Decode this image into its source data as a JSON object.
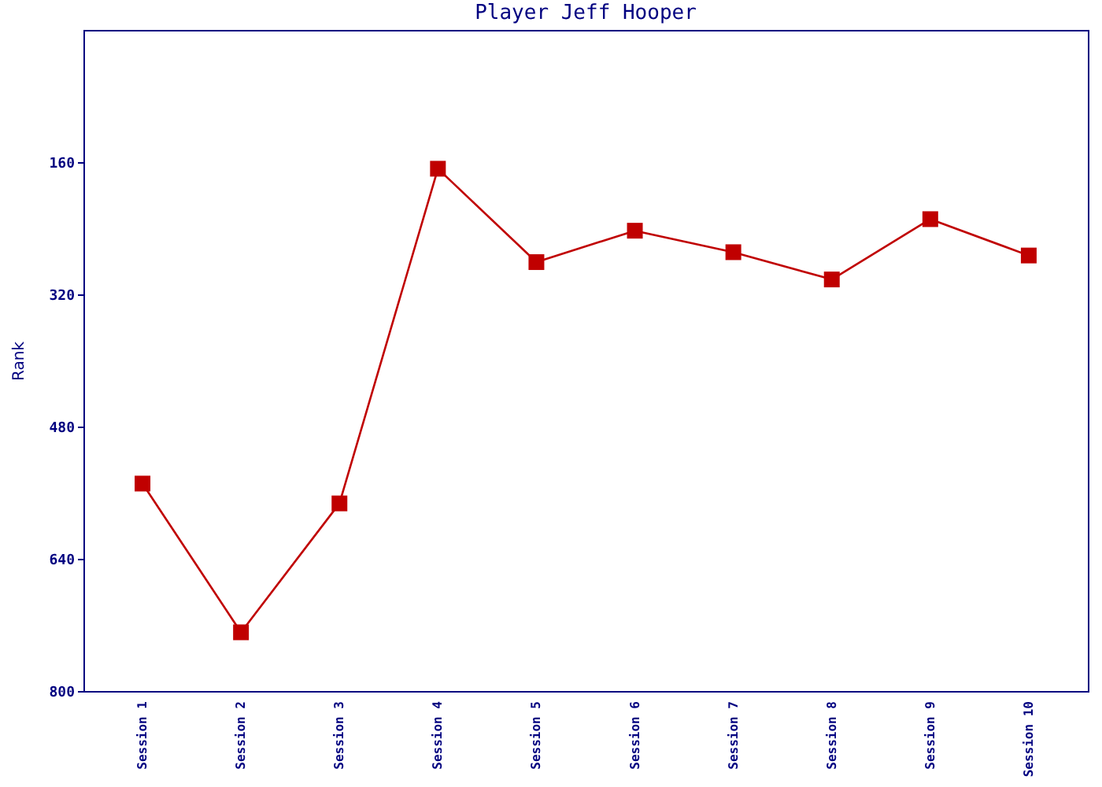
{
  "chart_data": {
    "type": "line",
    "title": "Player Jeff Hooper",
    "ylabel": "Rank",
    "categories": [
      "Session 1",
      "Session 2",
      "Session 3",
      "Session 4",
      "Session 5",
      "Session 6",
      "Session 7",
      "Session 8",
      "Session 9",
      "Session 10"
    ],
    "series": [
      {
        "color": "#c00000",
        "values": [
          549,
          729,
          573,
          168,
          281,
          243,
          269,
          302,
          229,
          273
        ]
      }
    ],
    "ylim": [
      800,
      0
    ],
    "yticks": [
      160,
      320,
      480,
      640,
      800
    ],
    "grid": false,
    "legend": false,
    "marker": "square",
    "line_style": "solid"
  }
}
